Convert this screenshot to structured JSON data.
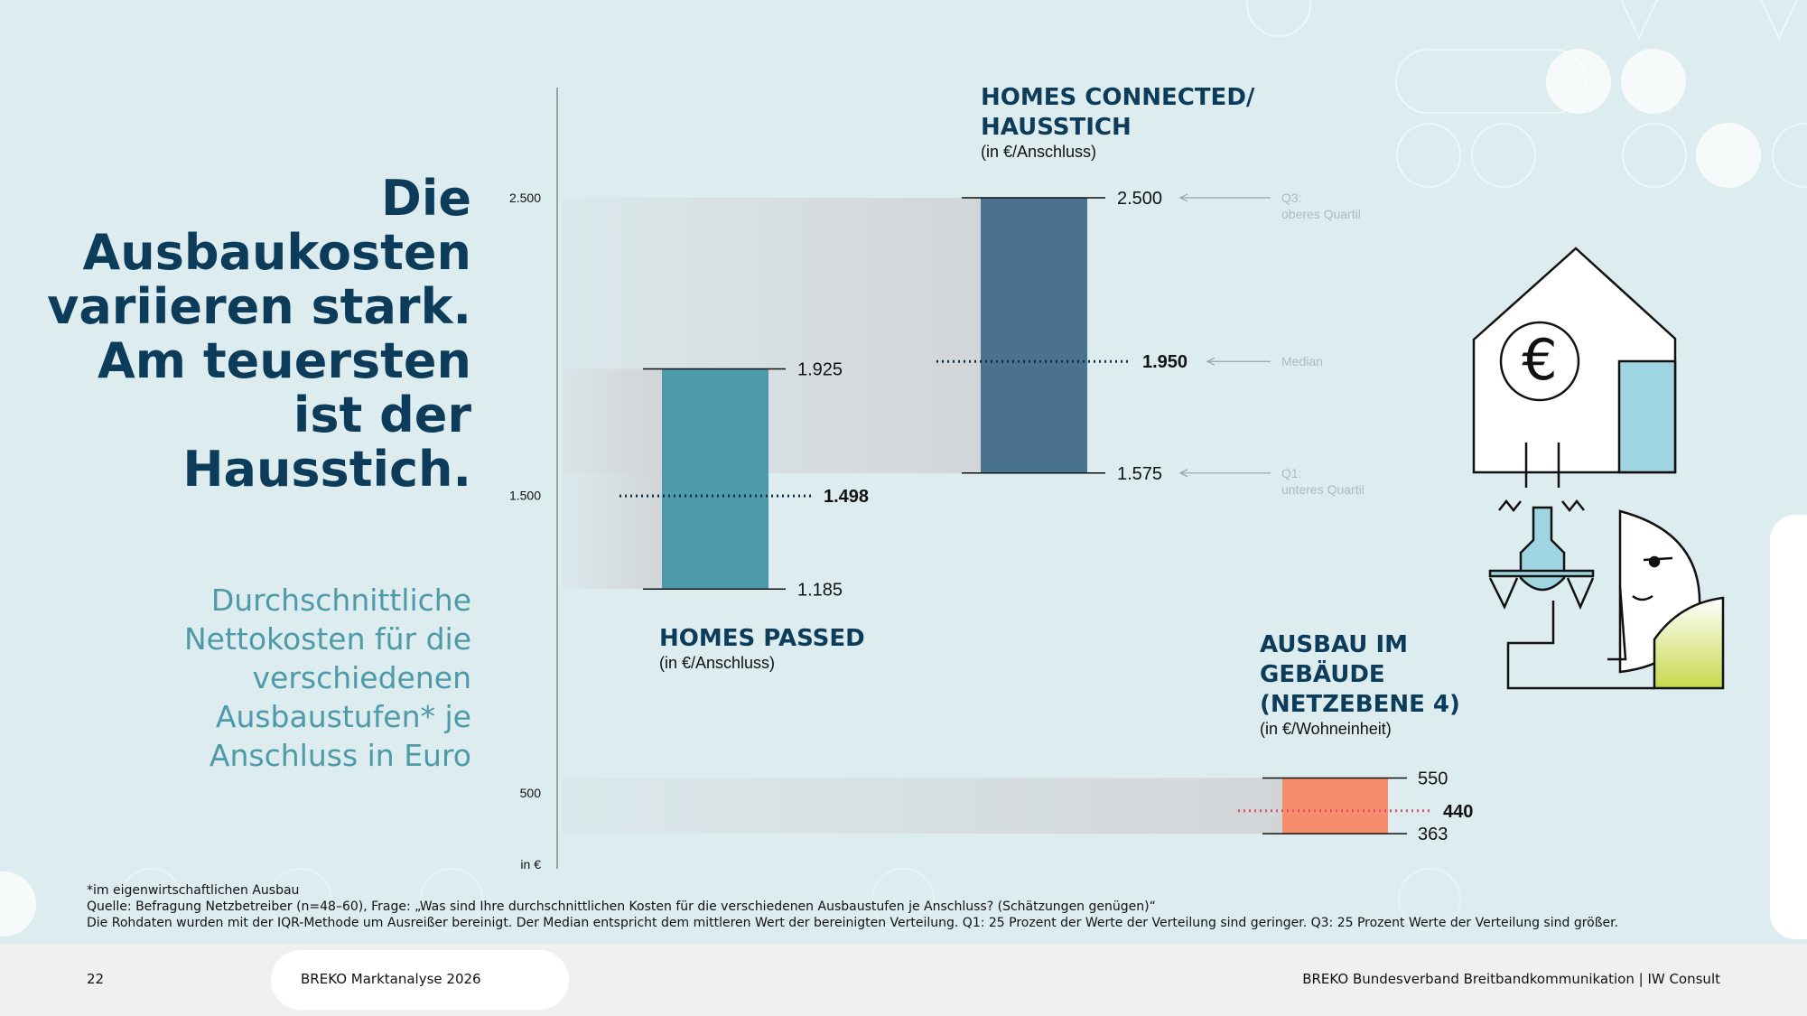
{
  "headline": [
    "Die",
    "Ausbaukosten",
    "variieren stark.",
    "Am teuersten",
    "ist der",
    "Hausstich."
  ],
  "subheadline": [
    "Durchschnittliche",
    "Nettokosten für die",
    "verschiedenen",
    "Ausbaustufen* je",
    "Anschluss in Euro"
  ],
  "colors": {
    "background": "#dcecef",
    "headline": "#0c3c5a",
    "subheadline": "#4e9aa8",
    "homes_passed": "#4e9aad",
    "homes_connected": "#4a7290",
    "netzebene4": "#f68d6c",
    "median_dots": "#0c2e45",
    "median_dots_ne4": "#e0506a",
    "legend_text": "#b3b9bc",
    "illustration_blue": "#9fd5e0",
    "illustration_green": "#c7d94a"
  },
  "chart_data": {
    "type": "bar",
    "description_kind": "range bars (Q1 to Q3) with median marker",
    "y_unit_label": "in €",
    "y_ticks": [
      {
        "value": 2500,
        "label": "2.500"
      },
      {
        "value": 1500,
        "label": "1.500"
      },
      {
        "value": 500,
        "label": "500"
      }
    ],
    "series": [
      {
        "name_lines": [
          "HOMES PASSED"
        ],
        "unit": "(in €/Anschluss)",
        "q1": 1185,
        "median": 1498,
        "q3": 1925,
        "q1_label": "1.185",
        "median_label": "1.498",
        "q3_label": "1.925"
      },
      {
        "name_lines": [
          "HOMES CONNECTED/",
          "HAUSSTICH"
        ],
        "unit": "(in €/Anschluss)",
        "q1": 1575,
        "median": 1950,
        "q3": 2500,
        "q1_label": "1.575",
        "median_label": "1.950",
        "q3_label": "2.500"
      },
      {
        "name_lines": [
          "AUSBAU IM",
          "GEBÄUDE",
          "(NETZEBENE 4)"
        ],
        "unit": "(in €/Wohneinheit)",
        "q1": 363,
        "median": 440,
        "q3": 550,
        "q1_label": "363",
        "median_label": "440",
        "q3_label": "550"
      }
    ],
    "legend": {
      "q3": [
        "Q3:",
        "oberes Quartil"
      ],
      "median": [
        "Median"
      ],
      "q1": [
        "Q1:",
        "unteres Quartil"
      ]
    }
  },
  "footnotes": [
    "*im eigenwirtschaftlichen Ausbau",
    "Quelle: Befragung Netzbetreiber (n=48–60), Frage: „Was sind Ihre durchschnittlichen Kosten für die verschiedenen Ausbaustufen je Anschluss? (Schätzungen genügen)“",
    "Die Rohdaten wurden mit der IQR-Methode um Ausreißer bereinigt. Der Median entspricht dem mittleren Wert der bereinigten Verteilung. Q1: 25 Prozent der Werte der Verteilung sind geringer. Q3: 25 Prozent Werte der Verteilung sind größer."
  ],
  "footer": {
    "page_number": "22",
    "left": "BREKO Marktanalyse 2026",
    "right": "BREKO Bundesverband Breitbandkommunikation | IW Consult"
  },
  "illustration": {
    "euro_symbol": "€"
  }
}
